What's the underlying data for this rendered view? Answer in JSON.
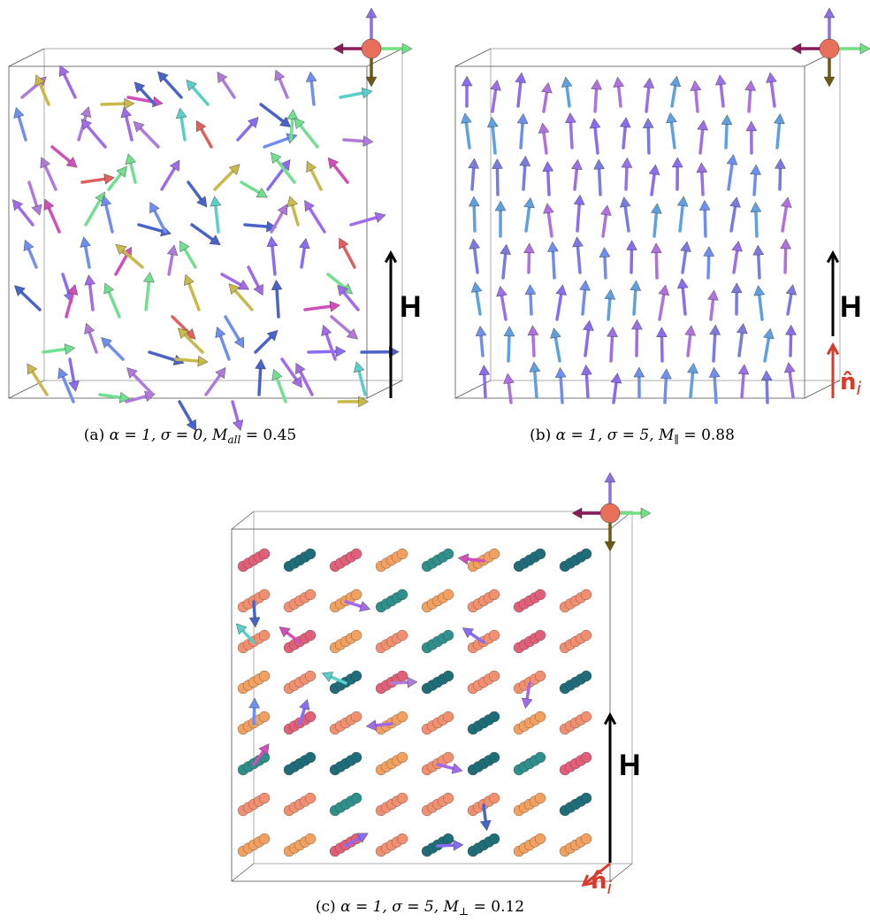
{
  "panels": [
    {
      "caption": {
        "prefix": "(a)",
        "text": "α = 1, σ = 0, M",
        "sub": "all",
        "value": " = 0.45"
      },
      "field_label": "H"
    },
    {
      "caption": {
        "prefix": "(b)",
        "text": "α = 1, σ = 5, M",
        "sub": "∥",
        "value": " = 0.88"
      },
      "field_label": "H",
      "normal_label": "n̂",
      "normal_sub": "i"
    },
    {
      "caption": {
        "prefix": "(c)",
        "text": "α = 1, σ = 5, M",
        "sub": "⊥",
        "value": " = 0.12"
      },
      "field_label": "H",
      "normal_label": "n̂",
      "normal_sub": "i"
    }
  ]
}
